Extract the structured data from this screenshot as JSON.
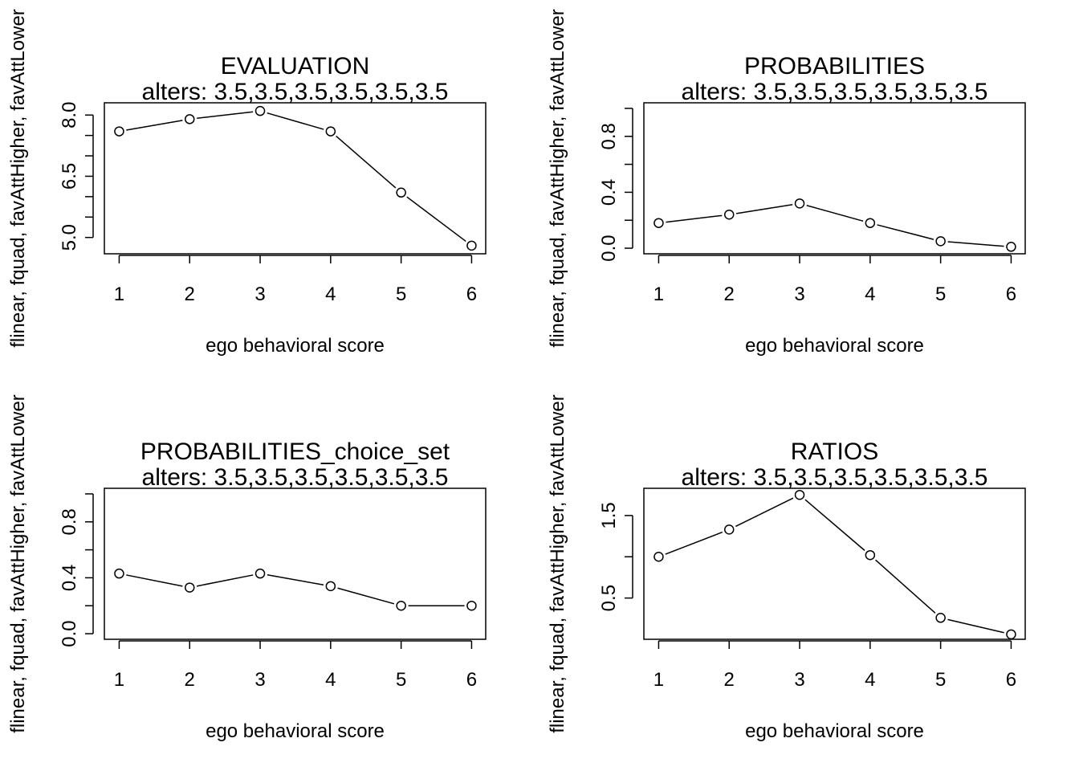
{
  "colors": {
    "line": "#000000",
    "point_fill": "#ffffff",
    "background": "#ffffff"
  },
  "chart_data": [
    {
      "type": "line",
      "title": "EVALUATION",
      "subtitle": "alters: 3.5,3.5,3.5,3.5,3.5,3.5",
      "xlabel": "ego behavioral score",
      "ylabel": "flinear, fquad, favAttHigher, favAttLower",
      "x": [
        1,
        2,
        3,
        4,
        5,
        6
      ],
      "values": [
        7.6,
        7.9,
        8.1,
        7.6,
        6.1,
        4.8
      ],
      "xlim": [
        0.79,
        6.2
      ],
      "ylim": [
        4.6,
        8.3
      ],
      "ytick_labels": [
        "5.0",
        "6.5",
        "8.0"
      ],
      "ytick_label_values": [
        5.0,
        6.5,
        8.0
      ],
      "yticks": [
        5.0,
        5.5,
        6.0,
        6.5,
        7.0,
        7.5,
        8.0
      ],
      "xticks": [
        1,
        2,
        3,
        4,
        5,
        6
      ],
      "grid": false
    },
    {
      "type": "line",
      "title": "PROBABILITIES",
      "subtitle": "alters: 3.5,3.5,3.5,3.5,3.5,3.5",
      "xlabel": "ego behavioral score",
      "ylabel": "flinear, fquad, favAttHigher, favAttLower",
      "x": [
        1,
        2,
        3,
        4,
        5,
        6
      ],
      "values": [
        0.18,
        0.24,
        0.32,
        0.18,
        0.05,
        0.01
      ],
      "xlim": [
        0.79,
        6.2
      ],
      "ylim": [
        -0.04,
        1.04
      ],
      "ytick_labels": [
        "0.0",
        "0.4",
        "0.8"
      ],
      "ytick_label_values": [
        0.0,
        0.4,
        0.8
      ],
      "yticks": [
        0.0,
        0.2,
        0.4,
        0.6,
        0.8,
        1.0
      ],
      "xticks": [
        1,
        2,
        3,
        4,
        5,
        6
      ],
      "grid": false
    },
    {
      "type": "line",
      "title": "PROBABILITIES_choice_set",
      "subtitle": "alters: 3.5,3.5,3.5,3.5,3.5,3.5",
      "xlabel": "ego behavioral score",
      "ylabel": "flinear, fquad, favAttHigher, favAttLower",
      "x": [
        1,
        2,
        3,
        4,
        5,
        6
      ],
      "values": [
        0.43,
        0.33,
        0.43,
        0.34,
        0.2,
        0.2
      ],
      "xlim": [
        0.79,
        6.2
      ],
      "ylim": [
        -0.04,
        1.04
      ],
      "ytick_labels": [
        "0.0",
        "0.4",
        "0.8"
      ],
      "ytick_label_values": [
        0.0,
        0.4,
        0.8
      ],
      "yticks": [
        0.0,
        0.2,
        0.4,
        0.6,
        0.8,
        1.0
      ],
      "xticks": [
        1,
        2,
        3,
        4,
        5,
        6
      ],
      "grid": false
    },
    {
      "type": "line",
      "title": "RATIOS",
      "subtitle": "alters: 3.5,3.5,3.5,3.5,3.5,3.5",
      "xlabel": "ego behavioral score",
      "ylabel": "flinear, fquad, favAttHigher, favAttLower",
      "x": [
        1,
        2,
        3,
        4,
        5,
        6
      ],
      "values": [
        1.0,
        1.33,
        1.75,
        1.02,
        0.26,
        0.06
      ],
      "xlim": [
        0.79,
        6.2
      ],
      "ylim": [
        0.0,
        1.83
      ],
      "ytick_labels": [
        "0.5",
        "1.5"
      ],
      "ytick_label_values": [
        0.5,
        1.5
      ],
      "yticks": [
        0.5,
        1.0,
        1.5
      ],
      "xticks": [
        1,
        2,
        3,
        4,
        5,
        6
      ],
      "grid": false
    }
  ]
}
